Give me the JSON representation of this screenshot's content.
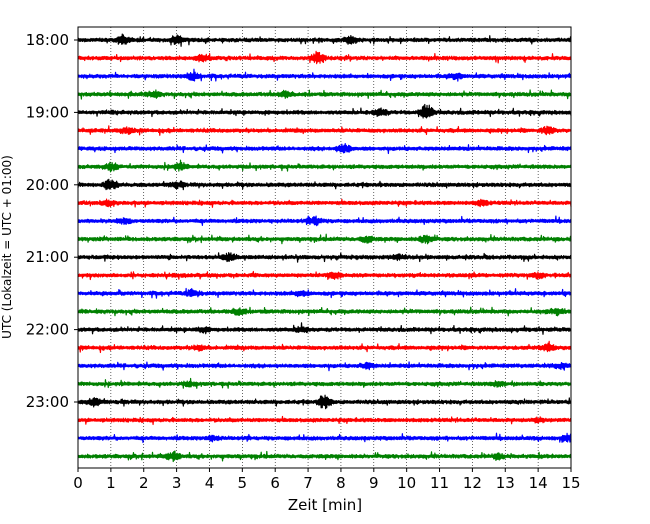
{
  "chart_data": {
    "type": "line",
    "title": "",
    "xlabel": "Zeit  [min]",
    "ylabel": "UTC (Lokalzeit = UTC + 01:00)",
    "xlim": [
      0,
      15
    ],
    "x_ticks": [
      "0",
      "1",
      "2",
      "3",
      "4",
      "5",
      "6",
      "7",
      "8",
      "9",
      "10",
      "11",
      "12",
      "13",
      "14",
      "15"
    ],
    "y_ticks": [
      "18:00",
      "19:00",
      "20:00",
      "21:00",
      "22:00",
      "23:00"
    ],
    "grid": "vertical dotted lines at each minute",
    "legend": "none",
    "trace_interval_min": 15,
    "trace_color_cycle": [
      "#000000",
      "#ff0000",
      "#0000ff",
      "#008000"
    ],
    "traces": [
      {
        "start": "18:00",
        "color": "#000000",
        "events": [
          {
            "t": 1.4,
            "amp": 0.9
          },
          {
            "t": 3.0,
            "amp": 1.0
          },
          {
            "t": 8.3,
            "amp": 0.8
          }
        ]
      },
      {
        "start": "18:15",
        "color": "#ff0000",
        "events": [
          {
            "t": 7.3,
            "amp": 1.2
          },
          {
            "t": 3.8,
            "amp": 0.7
          }
        ]
      },
      {
        "start": "18:30",
        "color": "#0000ff",
        "events": [
          {
            "t": 3.5,
            "amp": 0.9
          },
          {
            "t": 11.5,
            "amp": 0.6
          }
        ]
      },
      {
        "start": "18:45",
        "color": "#008000",
        "events": [
          {
            "t": 2.3,
            "amp": 0.7
          },
          {
            "t": 6.3,
            "amp": 0.6
          }
        ]
      },
      {
        "start": "19:00",
        "color": "#000000",
        "events": [
          {
            "t": 9.2,
            "amp": 0.9
          },
          {
            "t": 10.6,
            "amp": 1.9
          }
        ]
      },
      {
        "start": "19:15",
        "color": "#ff0000",
        "events": [
          {
            "t": 1.5,
            "amp": 0.6
          },
          {
            "t": 14.3,
            "amp": 0.9
          }
        ]
      },
      {
        "start": "19:30",
        "color": "#0000ff",
        "events": [
          {
            "t": 8.1,
            "amp": 1.1
          }
        ]
      },
      {
        "start": "19:45",
        "color": "#008000",
        "events": [
          {
            "t": 1.0,
            "amp": 0.8
          },
          {
            "t": 3.1,
            "amp": 0.8
          }
        ]
      },
      {
        "start": "20:00",
        "color": "#000000",
        "events": [
          {
            "t": 1.0,
            "amp": 1.2
          },
          {
            "t": 3.0,
            "amp": 0.6
          }
        ]
      },
      {
        "start": "20:15",
        "color": "#ff0000",
        "events": [
          {
            "t": 0.9,
            "amp": 0.6
          },
          {
            "t": 12.3,
            "amp": 0.6
          }
        ]
      },
      {
        "start": "20:30",
        "color": "#0000ff",
        "events": [
          {
            "t": 7.2,
            "amp": 1.0
          },
          {
            "t": 1.4,
            "amp": 0.6
          }
        ]
      },
      {
        "start": "20:45",
        "color": "#008000",
        "events": [
          {
            "t": 10.6,
            "amp": 1.0
          },
          {
            "t": 8.8,
            "amp": 0.7
          }
        ]
      },
      {
        "start": "21:00",
        "color": "#000000",
        "events": [
          {
            "t": 4.6,
            "amp": 0.9
          },
          {
            "t": 9.7,
            "amp": 0.5
          }
        ]
      },
      {
        "start": "21:15",
        "color": "#ff0000",
        "events": [
          {
            "t": 7.8,
            "amp": 0.6
          },
          {
            "t": 14.0,
            "amp": 0.6
          }
        ]
      },
      {
        "start": "21:30",
        "color": "#0000ff",
        "events": [
          {
            "t": 3.5,
            "amp": 0.8
          },
          {
            "t": 6.8,
            "amp": 0.6
          }
        ]
      },
      {
        "start": "21:45",
        "color": "#008000",
        "events": [
          {
            "t": 4.9,
            "amp": 0.7
          },
          {
            "t": 14.6,
            "amp": 0.6
          }
        ]
      },
      {
        "start": "22:00",
        "color": "#000000",
        "events": [
          {
            "t": 6.8,
            "amp": 0.6
          },
          {
            "t": 3.8,
            "amp": 0.5
          }
        ]
      },
      {
        "start": "22:15",
        "color": "#ff0000",
        "events": [
          {
            "t": 14.3,
            "amp": 0.8
          },
          {
            "t": 3.7,
            "amp": 0.5
          }
        ]
      },
      {
        "start": "22:30",
        "color": "#0000ff",
        "events": [
          {
            "t": 8.8,
            "amp": 0.6
          },
          {
            "t": 14.7,
            "amp": 0.6
          }
        ]
      },
      {
        "start": "22:45",
        "color": "#008000",
        "events": [
          {
            "t": 12.8,
            "amp": 0.6
          },
          {
            "t": 3.4,
            "amp": 0.5
          }
        ]
      },
      {
        "start": "23:00",
        "color": "#000000",
        "events": [
          {
            "t": 0.5,
            "amp": 0.9
          },
          {
            "t": 7.5,
            "amp": 1.5
          }
        ]
      },
      {
        "start": "23:15",
        "color": "#ff0000",
        "events": [
          {
            "t": 14.0,
            "amp": 0.4
          }
        ]
      },
      {
        "start": "23:30",
        "color": "#0000ff",
        "events": [
          {
            "t": 14.9,
            "amp": 0.8
          },
          {
            "t": 4.1,
            "amp": 0.6
          }
        ]
      },
      {
        "start": "23:45",
        "color": "#008000",
        "events": [
          {
            "t": 2.9,
            "amp": 1.0
          },
          {
            "t": 12.8,
            "amp": 0.5
          }
        ]
      }
    ]
  }
}
